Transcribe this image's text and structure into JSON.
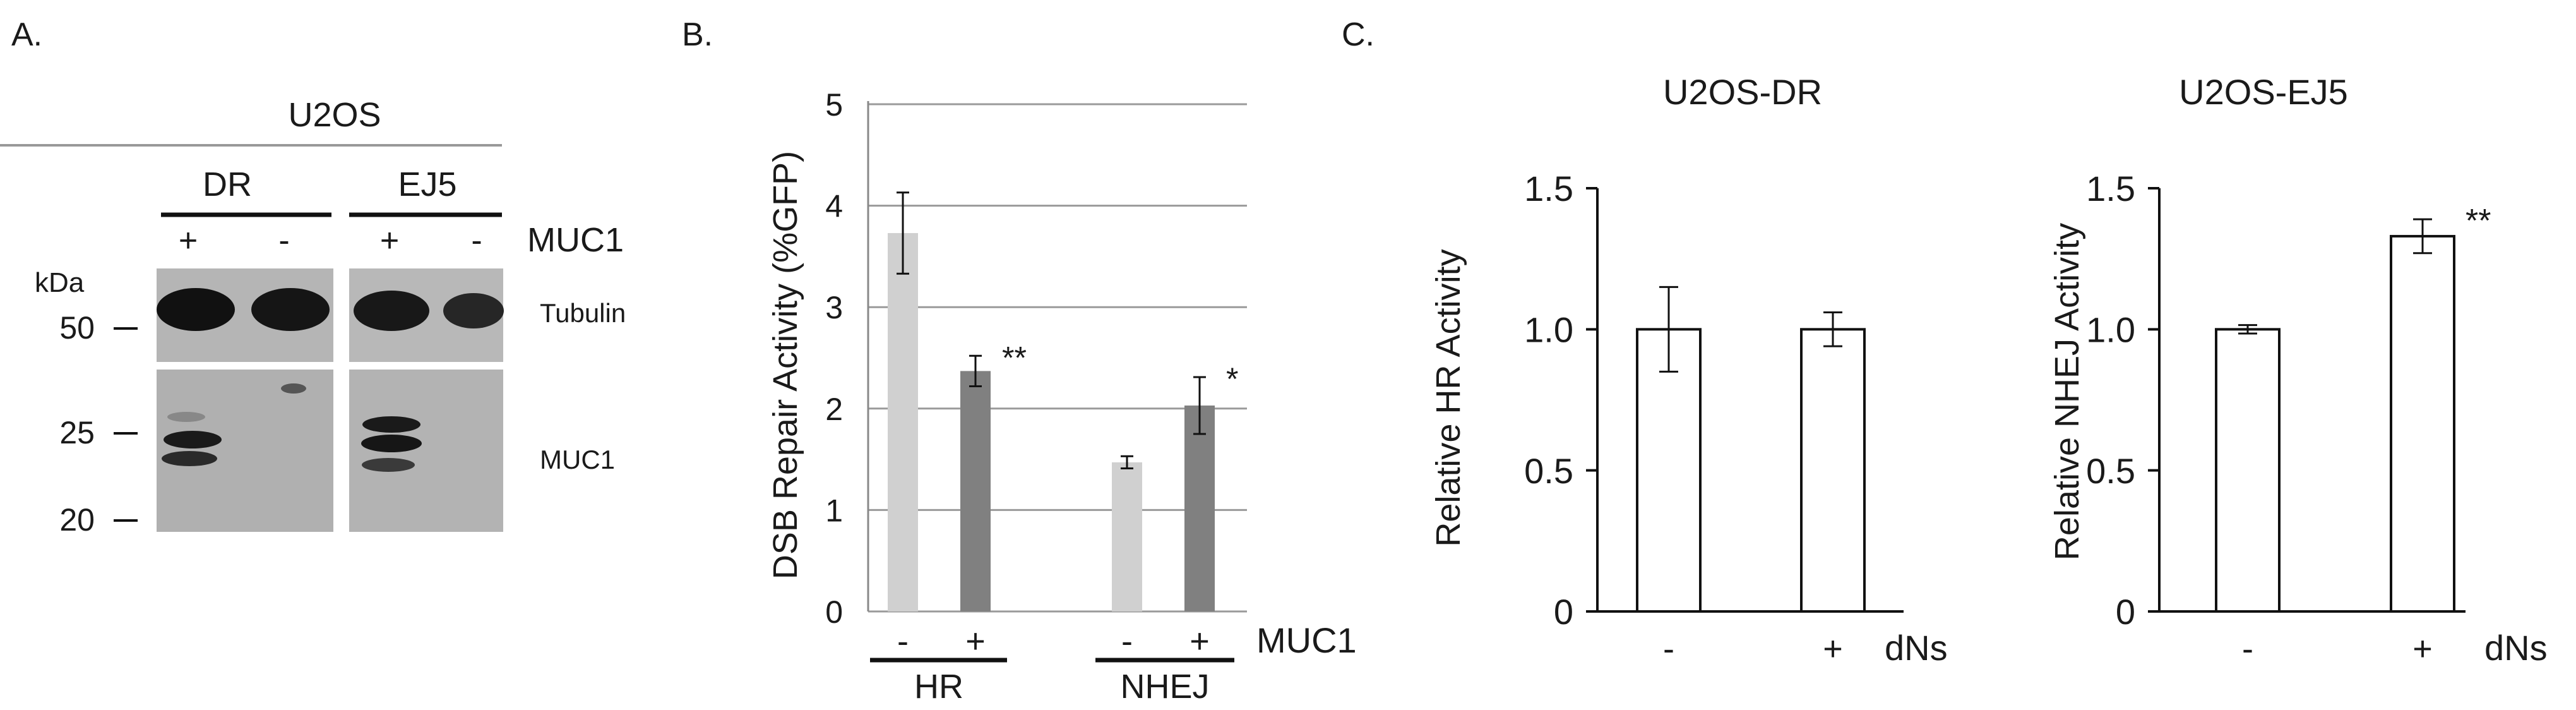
{
  "panel_a": {
    "label": "A.",
    "cell_line": "U2OS",
    "groups": [
      "DR",
      "EJ5"
    ],
    "lanes": [
      "+",
      "-",
      "+",
      "-"
    ],
    "muc1_row_label": "MUC1",
    "kda_label": "kDa",
    "markers": [
      "50",
      "25",
      "20"
    ],
    "band_labels": [
      "Tubulin",
      "MUC1"
    ]
  },
  "panel_b_label": "B.",
  "panel_c_label": "C.",
  "chart_data": [
    {
      "id": "panel-b",
      "type": "bar",
      "title": "",
      "xlabel": "",
      "ylabel": "DSB Repair Activity (%GFP)",
      "ylim": [
        0,
        5
      ],
      "yticks": [
        "0",
        "1",
        "2",
        "3",
        "4",
        "5"
      ],
      "grid": true,
      "condition_label": "MUC1",
      "groups": [
        "HR",
        "NHEJ"
      ],
      "categories": [
        "-",
        "+",
        "-",
        "+"
      ],
      "values": [
        3.73,
        2.37,
        1.47,
        2.03
      ],
      "errors": [
        0.4,
        0.15,
        0.06,
        0.28
      ],
      "colors": [
        "#d0d0d0",
        "#808080",
        "#d0d0d0",
        "#808080"
      ],
      "annotations": [
        "",
        "**",
        "",
        "*"
      ]
    },
    {
      "id": "panel-c-dr",
      "type": "bar",
      "title": "U2OS-DR",
      "xlabel": "",
      "ylabel": "Relative HR Activity",
      "ylim": [
        0,
        1.5
      ],
      "yticks": [
        "0",
        "0.5",
        "1.0",
        "1.5"
      ],
      "grid": false,
      "condition_label": "dNs",
      "categories": [
        "-",
        "+"
      ],
      "values": [
        1.0,
        1.0
      ],
      "errors": [
        0.15,
        0.06
      ],
      "colors": [
        "#ffffff",
        "#ffffff"
      ],
      "annotations": [
        "",
        ""
      ]
    },
    {
      "id": "panel-c-ej5",
      "type": "bar",
      "title": "U2OS-EJ5",
      "xlabel": "",
      "ylabel": "Relative NHEJ Activity",
      "ylim": [
        0,
        1.5
      ],
      "yticks": [
        "0",
        "0.5",
        "1.0",
        "1.5"
      ],
      "grid": false,
      "condition_label": "dNs",
      "categories": [
        "-",
        "+"
      ],
      "values": [
        1.0,
        1.33
      ],
      "errors": [
        0.015,
        0.06
      ],
      "colors": [
        "#ffffff",
        "#ffffff"
      ],
      "annotations": [
        "",
        "**"
      ]
    }
  ]
}
